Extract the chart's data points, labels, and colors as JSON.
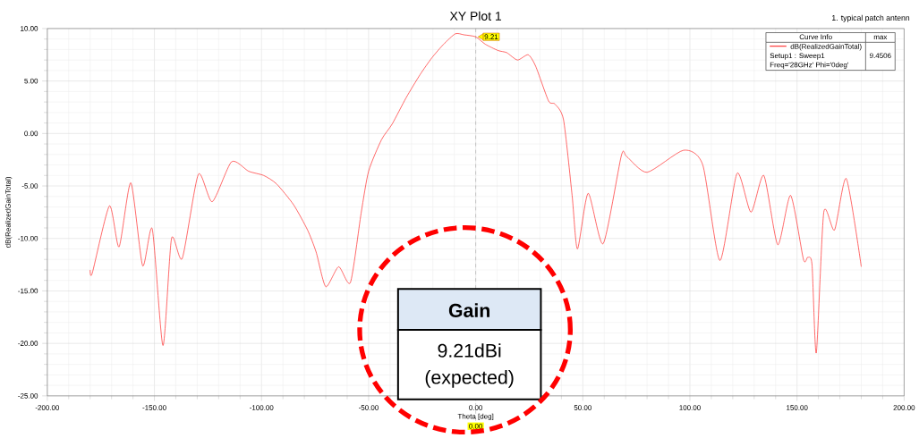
{
  "chart_data": {
    "type": "line",
    "title": "XY Plot 1",
    "xlabel": "Theta [deg]",
    "ylabel": "dB(RealizedGainTotal)",
    "x": [
      -180,
      -179,
      -171,
      -166.5,
      -161,
      -155.5,
      -151,
      -146,
      -142,
      -137,
      -129.5,
      -123,
      -114,
      -106,
      -99,
      -93,
      -85,
      -78.5,
      -74.5,
      -70,
      -64,
      -58.5,
      -53.5,
      -50,
      -44,
      -39,
      -32.5,
      -26,
      -20.5,
      -15,
      -9.5,
      -5.5,
      0,
      4.5,
      10.5,
      14.5,
      19.5,
      24.5,
      28,
      34,
      37,
      41,
      45,
      47.5,
      52.5,
      59.5,
      68,
      70.5,
      80,
      97,
      106,
      114,
      122,
      128.5,
      134.5,
      141,
      147,
      153,
      155,
      157,
      159,
      162.5,
      167.5,
      173,
      180
    ],
    "series": [
      {
        "name": "dB(RealizedGainTotal)",
        "color": "#ff2020",
        "values": [
          -13.0,
          -13.3,
          -6.9,
          -10.8,
          -4.7,
          -12.6,
          -9.1,
          -20.2,
          -10.0,
          -11.9,
          -3.9,
          -6.5,
          -2.7,
          -3.6,
          -4.0,
          -4.8,
          -6.8,
          -9.2,
          -11.3,
          -14.6,
          -12.7,
          -14.2,
          -7.6,
          -3.6,
          -0.6,
          0.9,
          3.4,
          5.6,
          7.2,
          8.5,
          9.5,
          9.4,
          9.21,
          8.5,
          7.9,
          7.7,
          7.0,
          7.5,
          6.4,
          3.1,
          2.8,
          1.3,
          -5.9,
          -11.0,
          -5.7,
          -10.5,
          -2.1,
          -2.2,
          -3.7,
          -1.6,
          -3.0,
          -12.1,
          -3.8,
          -7.5,
          -4.0,
          -10.6,
          -5.9,
          -12.0,
          -11.8,
          -12.5,
          -20.9,
          -7.5,
          -9.2,
          -4.3,
          -12.7
        ]
      }
    ],
    "xlim": [
      -200,
      200
    ],
    "xticks": [
      {
        "value": -200,
        "label": "-200.00"
      },
      {
        "value": -150,
        "label": "-150.00"
      },
      {
        "value": -100,
        "label": "-100.00"
      },
      {
        "value": -50,
        "label": "-50.00"
      },
      {
        "value": 0,
        "label": "0.00"
      },
      {
        "value": 50,
        "label": "50.00"
      },
      {
        "value": 100,
        "label": "100.00"
      },
      {
        "value": 150,
        "label": "150.00"
      },
      {
        "value": 200,
        "label": "200.00"
      }
    ],
    "ylim": [
      -25,
      10
    ],
    "yticks": [
      {
        "value": -25,
        "label": "-25.00"
      },
      {
        "value": -20,
        "label": "-20.00"
      },
      {
        "value": -15,
        "label": "-15.00"
      },
      {
        "value": -10,
        "label": "-10.00"
      },
      {
        "value": -5,
        "label": "-5.00"
      },
      {
        "value": 0,
        "label": "0.00"
      },
      {
        "value": 5,
        "label": "5.00"
      },
      {
        "value": 10,
        "label": "10.00"
      }
    ],
    "grid": true,
    "legend": "top right",
    "ref_lines": [
      {
        "axis": "x",
        "value": 0,
        "label": "0.00",
        "color": "#a0a0a0",
        "line_style": "dashed"
      }
    ],
    "annotations": [
      "1. typical patch antenn",
      "Setup1 : Sweep1",
      "Freq='28GHz' Phi='0deg'",
      "max",
      "9.4506",
      "Gain",
      "9.21dBi",
      "(expected)",
      {
        "text": "9.21",
        "x": 0,
        "y": 9.21
      },
      "Curve Info"
    ]
  }
}
